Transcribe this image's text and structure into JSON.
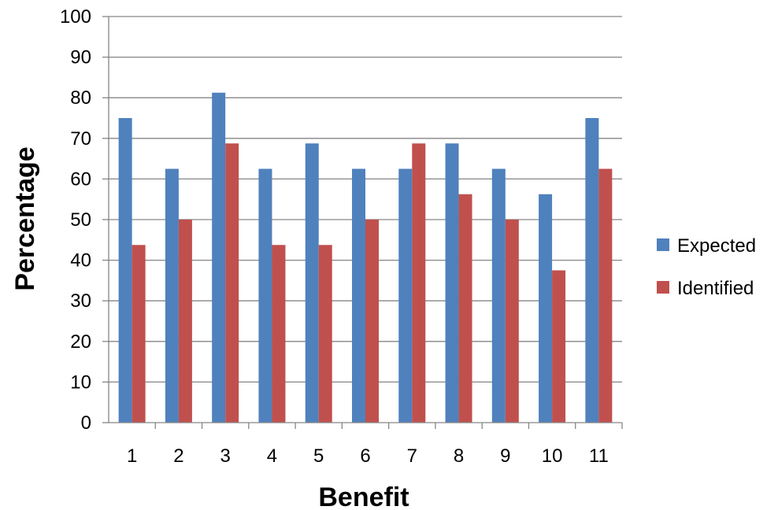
{
  "chart_data": {
    "type": "bar",
    "xlabel": "Benefit",
    "ylabel": "Percentage",
    "ylim": [
      0,
      100
    ],
    "ytick_step": 10,
    "grid": true,
    "legend_position": "right",
    "categories": [
      "1",
      "2",
      "3",
      "4",
      "5",
      "6",
      "7",
      "8",
      "9",
      "10",
      "11"
    ],
    "series": [
      {
        "name": "Expected",
        "color": "#4F81BD",
        "values": [
          75,
          62.5,
          81.25,
          62.5,
          68.75,
          62.5,
          62.5,
          68.75,
          62.5,
          56.25,
          75
        ]
      },
      {
        "name": "Identified",
        "color": "#C0504D",
        "values": [
          43.75,
          50,
          68.75,
          43.75,
          43.75,
          50,
          68.75,
          56.25,
          50,
          37.5,
          62.5
        ]
      }
    ]
  }
}
